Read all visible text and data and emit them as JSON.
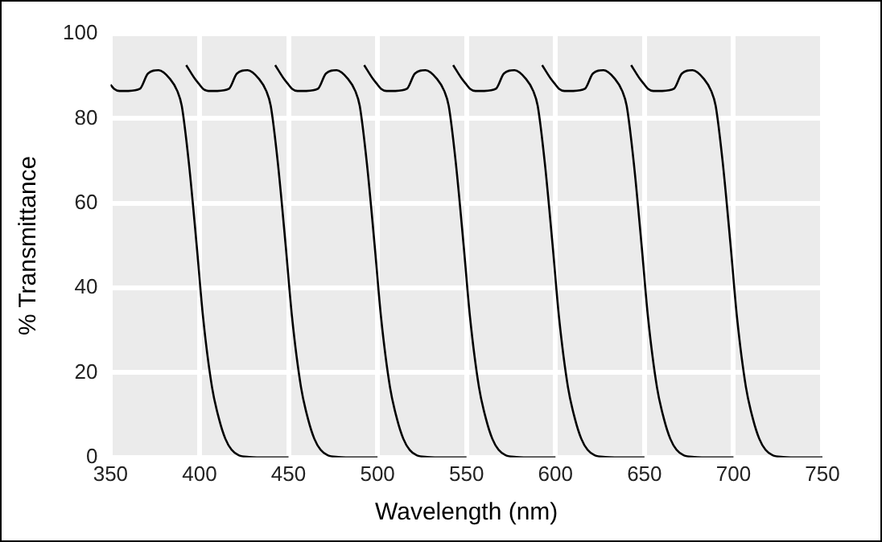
{
  "chart_data": {
    "type": "line",
    "xlabel": "Wavelength (nm)",
    "ylabel": "% Transmittance",
    "xlim": [
      350,
      750
    ],
    "xticks": [
      350,
      400,
      450,
      500,
      550,
      600,
      650,
      700,
      750
    ],
    "ylim": [
      0,
      100
    ],
    "yticks": [
      0,
      20,
      40,
      60,
      80,
      100
    ],
    "grid": true,
    "legend": false,
    "marker": "none",
    "series": [
      {
        "color": "#000000",
        "x": [
          350,
          352,
          355,
          360,
          366.5,
          371,
          377,
          383.5,
          387.5,
          390,
          394,
          398.4,
          402,
          407,
          411,
          414.5,
          418,
          422,
          428,
          438,
          450
        ],
        "values": [
          88,
          87,
          86.5,
          86.5,
          87,
          90.6,
          91.4,
          89.3,
          86.5,
          83,
          69.5,
          50,
          33,
          16.6,
          9,
          4.4,
          1.8,
          0.5,
          0.1,
          0,
          0
        ]
      },
      {
        "color": "#000000",
        "x": [
          392.5,
          397.5,
          400,
          402,
          405,
          410,
          416.5,
          421,
          427,
          433.5,
          437.5,
          440,
          444,
          448.4,
          452,
          457,
          461,
          464.5,
          468,
          472,
          478,
          488,
          500
        ],
        "values": [
          92.6,
          89.3,
          88,
          87,
          86.5,
          86.5,
          87,
          90.6,
          91.4,
          89.3,
          86.5,
          83,
          69.5,
          50,
          33,
          16.6,
          9,
          4.4,
          1.8,
          0.5,
          0.1,
          0,
          0
        ]
      },
      {
        "color": "#000000",
        "x": [
          442.5,
          447.5,
          450,
          452,
          455,
          460,
          466.5,
          471,
          477,
          483.5,
          487.5,
          490,
          494,
          498.4,
          502,
          507,
          511,
          514.5,
          518,
          522,
          528,
          538,
          550
        ],
        "values": [
          92.6,
          89.3,
          88,
          87,
          86.5,
          86.5,
          87,
          90.6,
          91.4,
          89.3,
          86.5,
          83,
          69.5,
          50,
          33,
          16.6,
          9,
          4.4,
          1.8,
          0.5,
          0.1,
          0,
          0
        ]
      },
      {
        "color": "#000000",
        "x": [
          492.5,
          497.5,
          500,
          502,
          505,
          510,
          516.5,
          521,
          527,
          533.5,
          537.5,
          540,
          544,
          548.4,
          552,
          557,
          561,
          564.5,
          568,
          572,
          578,
          588,
          600
        ],
        "values": [
          92.6,
          89.3,
          88,
          87,
          86.5,
          86.5,
          87,
          90.6,
          91.4,
          89.3,
          86.5,
          83,
          69.5,
          50,
          33,
          16.6,
          9,
          4.4,
          1.8,
          0.5,
          0.1,
          0,
          0
        ]
      },
      {
        "color": "#000000",
        "x": [
          542.5,
          547.5,
          550,
          552,
          555,
          560,
          566.5,
          571,
          577,
          583.5,
          587.5,
          590,
          594,
          598.4,
          602,
          607,
          611,
          614.5,
          618,
          622,
          628,
          638,
          650
        ],
        "values": [
          92.6,
          89.3,
          88,
          87,
          86.5,
          86.5,
          87,
          90.6,
          91.4,
          89.3,
          86.5,
          83,
          69.5,
          50,
          33,
          16.6,
          9,
          4.4,
          1.8,
          0.5,
          0.1,
          0,
          0
        ]
      },
      {
        "color": "#000000",
        "x": [
          592.5,
          597.5,
          600,
          602,
          605,
          610,
          616.5,
          621,
          627,
          633.5,
          637.5,
          640,
          644,
          648.4,
          652,
          657,
          661,
          664.5,
          668,
          672,
          678,
          688,
          700
        ],
        "values": [
          92.6,
          89.3,
          88,
          87,
          86.5,
          86.5,
          87,
          90.6,
          91.4,
          89.3,
          86.5,
          83,
          69.5,
          50,
          33,
          16.6,
          9,
          4.4,
          1.8,
          0.5,
          0.1,
          0,
          0
        ]
      },
      {
        "color": "#000000",
        "x": [
          642.5,
          647.5,
          650,
          652,
          655,
          660,
          666.5,
          671,
          677,
          683.5,
          687.5,
          690,
          694,
          698.4,
          702,
          707,
          711,
          714.5,
          718,
          722,
          728,
          738,
          750
        ],
        "values": [
          92.6,
          89.3,
          88,
          87,
          86.5,
          86.5,
          87,
          90.6,
          91.4,
          89.3,
          86.5,
          83,
          69.5,
          50,
          33,
          16.6,
          9,
          4.4,
          1.8,
          0.5,
          0.1,
          0,
          0
        ]
      }
    ]
  }
}
